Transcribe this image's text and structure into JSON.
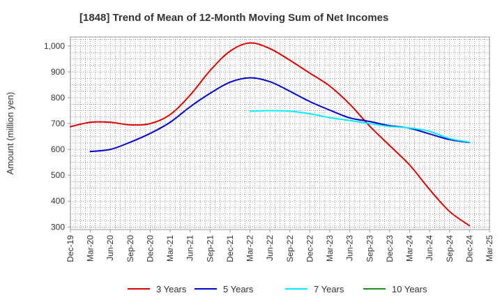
{
  "chart_data": {
    "type": "line",
    "title": "[1848]  Trend of Mean of 12-Month Moving Sum of Net Incomes",
    "xlabel": "",
    "ylabel": "Amount (million yen)",
    "ylim": [
      290,
      1035
    ],
    "yticks": [
      300,
      400,
      500,
      600,
      700,
      800,
      900,
      1000
    ],
    "ytick_labels": [
      "300",
      "400",
      "500",
      "600",
      "700",
      "800",
      "900",
      "1,000"
    ],
    "categories": [
      "Dec-19",
      "Mar-20",
      "Jun-20",
      "Sep-20",
      "Dec-20",
      "Mar-21",
      "Jun-21",
      "Sep-21",
      "Dec-21",
      "Mar-22",
      "Jun-22",
      "Sep-22",
      "Dec-22",
      "Mar-23",
      "Jun-23",
      "Sep-23",
      "Dec-23",
      "Mar-24",
      "Jun-24",
      "Sep-24",
      "Dec-24",
      "Mar-25"
    ],
    "grid": true,
    "legend_position": "bottom",
    "series": [
      {
        "name": "3 Years",
        "color": "#dd0000",
        "values": [
          688,
          705,
          705,
          695,
          700,
          735,
          810,
          905,
          980,
          1012,
          990,
          945,
          895,
          845,
          775,
          690,
          615,
          540,
          445,
          360,
          305,
          null
        ]
      },
      {
        "name": "5 Years",
        "color": "#0000cc",
        "values": [
          null,
          592,
          600,
          628,
          662,
          705,
          765,
          817,
          860,
          877,
          862,
          825,
          785,
          752,
          722,
          708,
          692,
          682,
          660,
          638,
          627,
          null
        ]
      },
      {
        "name": "7 Years",
        "color": "#00eeff",
        "values": [
          null,
          null,
          null,
          null,
          null,
          null,
          null,
          null,
          null,
          748,
          750,
          748,
          738,
          723,
          712,
          700,
          689,
          683,
          670,
          642,
          628,
          null
        ]
      },
      {
        "name": "10 Years",
        "color": "#228b22",
        "values": [
          null,
          null,
          null,
          null,
          null,
          null,
          null,
          null,
          null,
          null,
          null,
          null,
          null,
          null,
          null,
          null,
          null,
          null,
          null,
          null,
          null,
          null
        ]
      }
    ]
  }
}
